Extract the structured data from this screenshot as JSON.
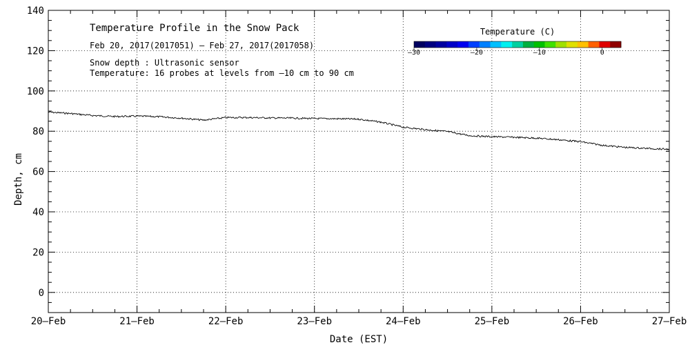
{
  "chart_data": {
    "type": "line",
    "title": "Temperature Profile in the Snow Pack",
    "subtitle": "Feb 20, 2017(2017051) – Feb 27, 2017(2017058)",
    "annotations": [
      "Snow depth : Ultrasonic sensor",
      "Temperature: 16 probes at levels from –10 cm to 90 cm"
    ],
    "xlabel": "Date (EST)",
    "ylabel": "Depth, cm",
    "x_ticks": [
      "20–Feb",
      "21–Feb",
      "22–Feb",
      "23–Feb",
      "24–Feb",
      "25–Feb",
      "26–Feb",
      "27–Feb"
    ],
    "xlim": [
      "2017-02-20",
      "2017-02-27"
    ],
    "ylim": [
      -10,
      140
    ],
    "y_ticks": [
      0,
      20,
      40,
      60,
      80,
      100,
      120,
      140
    ],
    "y_tick_labels": [
      "0",
      "20",
      "40",
      "60",
      "80",
      "100",
      "120",
      "140"
    ],
    "grid": true,
    "series": [
      {
        "points": [
          [
            "2017-02-20 00:00",
            89.5
          ],
          [
            "2017-02-20 06:00",
            88.8
          ],
          [
            "2017-02-20 12:00",
            87.8
          ],
          [
            "2017-02-20 18:00",
            87.3
          ],
          [
            "2017-02-21 00:00",
            87.5
          ],
          [
            "2017-02-21 06:00",
            87.2
          ],
          [
            "2017-02-21 12:00",
            86.5
          ],
          [
            "2017-02-21 18:00",
            85.5
          ],
          [
            "2017-02-22 00:00",
            86.8
          ],
          [
            "2017-02-22 06:00",
            86.8
          ],
          [
            "2017-02-22 12:00",
            86.6
          ],
          [
            "2017-02-22 18:00",
            86.5
          ],
          [
            "2017-02-23 00:00",
            86.3
          ],
          [
            "2017-02-23 06:00",
            86.2
          ],
          [
            "2017-02-23 12:00",
            86.0
          ],
          [
            "2017-02-23 18:00",
            84.5
          ],
          [
            "2017-02-24 00:00",
            82.0
          ],
          [
            "2017-02-24 06:00",
            80.8
          ],
          [
            "2017-02-24 12:00",
            79.8
          ],
          [
            "2017-02-24 18:00",
            77.8
          ],
          [
            "2017-02-25 00:00",
            77.3
          ],
          [
            "2017-02-25 06:00",
            77.0
          ],
          [
            "2017-02-25 12:00",
            76.6
          ],
          [
            "2017-02-25 18:00",
            75.8
          ],
          [
            "2017-02-26 00:00",
            74.8
          ],
          [
            "2017-02-26 06:00",
            73.0
          ],
          [
            "2017-02-26 12:00",
            72.0
          ],
          [
            "2017-02-26 18:00",
            71.5
          ],
          [
            "2017-02-27 00:00",
            71.0
          ]
        ]
      }
    ],
    "legend": {
      "title": "Temperature (C)",
      "tick_labels": [
        "–30",
        "–20",
        "–10",
        "0"
      ],
      "tick_values": [
        -30,
        -20,
        -10,
        0
      ],
      "range": [
        -30,
        3
      ],
      "colors": [
        "#000060",
        "#000080",
        "#0000a0",
        "#0000c8",
        "#0000f0",
        "#0040ff",
        "#0080ff",
        "#00c0ff",
        "#00f0f0",
        "#00d0a0",
        "#00b040",
        "#00c000",
        "#40e000",
        "#a0e000",
        "#e0e000",
        "#ffc000",
        "#ff6000",
        "#e00000",
        "#900000"
      ],
      "placement": "top-right"
    },
    "colors": {
      "line": "#000000",
      "grid": "#000000",
      "background": "#ffffff"
    }
  }
}
